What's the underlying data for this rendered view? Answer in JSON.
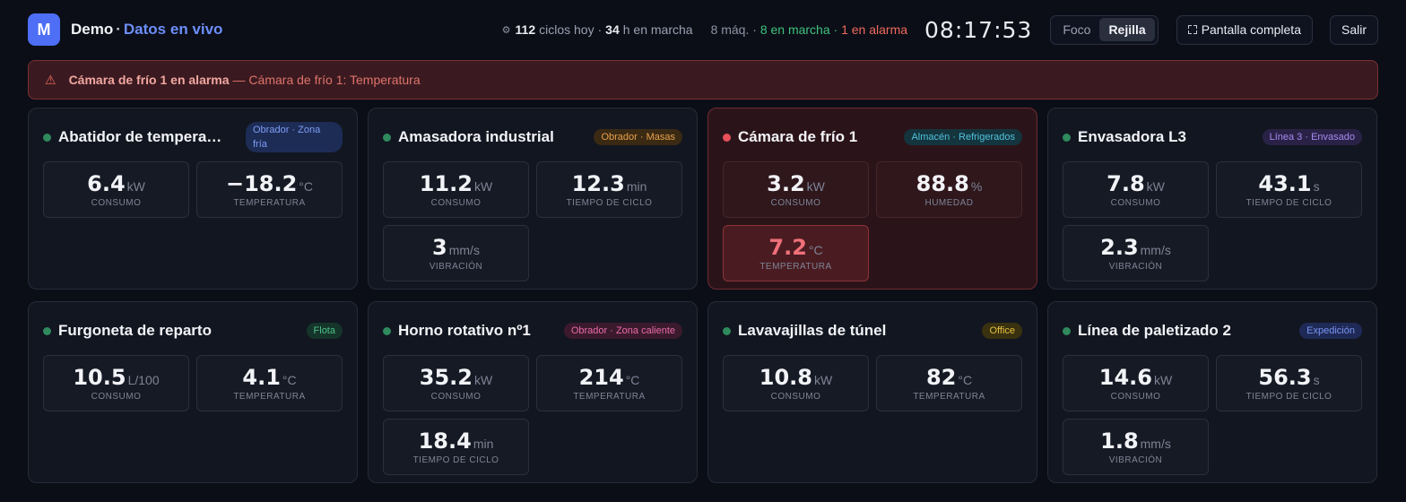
{
  "header": {
    "logo_letter": "M",
    "brand": "Demo",
    "brand_sep": "·",
    "live": "Datos en vivo",
    "cycles_count": "112",
    "cycles_text": "ciclos hoy ·",
    "hours_count": "34",
    "hours_text": "h en marcha",
    "machines_total": "8 máq. ·",
    "machines_running": "8 en marcha",
    "machines_sep": "·",
    "machines_alarm": "1 en alarma",
    "clock": "08:17:53",
    "view_focus": "Foco",
    "view_grid": "Rejilla",
    "fullscreen": "Pantalla completa",
    "exit": "Salir"
  },
  "alert": {
    "icon": "warning-triangle-icon",
    "title": "Cámara de frío 1 en alarma",
    "detail": "— Cámara de frío 1: Temperatura"
  },
  "cards": [
    {
      "title": "Abatidor de tempera…",
      "tag": "Obrador · Zona fría",
      "metrics": [
        {
          "value": "6.4",
          "unit": "kW",
          "label": "CONSUMO"
        },
        {
          "value": "−18.2",
          "unit": "°C",
          "label": "TEMPERATURA"
        }
      ]
    },
    {
      "title": "Amasadora industrial",
      "tag": "Obrador · Masas",
      "metrics": [
        {
          "value": "11.2",
          "unit": "kW",
          "label": "CONSUMO"
        },
        {
          "value": "12.3",
          "unit": "min",
          "label": "TIEMPO DE CICLO"
        },
        {
          "value": "3",
          "unit": "mm/s",
          "label": "VIBRACIÓN"
        }
      ]
    },
    {
      "title": "Cámara de frío 1",
      "tag": "Almacén · Refrigerados",
      "status": "alarm",
      "metrics": [
        {
          "value": "3.2",
          "unit": "kW",
          "label": "CONSUMO"
        },
        {
          "value": "88.8",
          "unit": "%",
          "label": "HUMEDAD"
        },
        {
          "value": "7.2",
          "unit": "°C",
          "label": "TEMPERATURA"
        }
      ]
    },
    {
      "title": "Envasadora L3",
      "tag": "Línea 3 · Envasado",
      "metrics": [
        {
          "value": "7.8",
          "unit": "kW",
          "label": "CONSUMO"
        },
        {
          "value": "43.1",
          "unit": "s",
          "label": "TIEMPO DE CICLO"
        },
        {
          "value": "2.3",
          "unit": "mm/s",
          "label": "VIBRACIÓN"
        }
      ]
    },
    {
      "title": "Furgoneta de reparto",
      "tag": "Flota",
      "metrics": [
        {
          "value": "10.5",
          "unit": "L/100",
          "label": "CONSUMO"
        },
        {
          "value": "4.1",
          "unit": "°C",
          "label": "TEMPERATURA"
        }
      ]
    },
    {
      "title": "Horno rotativo nº1",
      "tag": "Obrador · Zona caliente",
      "metrics": [
        {
          "value": "35.2",
          "unit": "kW",
          "label": "CONSUMO"
        },
        {
          "value": "214",
          "unit": "°C",
          "label": "TEMPERATURA"
        },
        {
          "value": "18.4",
          "unit": "min",
          "label": "TIEMPO DE CICLO"
        }
      ]
    },
    {
      "title": "Lavavajillas de túnel",
      "tag": "Office",
      "metrics": [
        {
          "value": "10.8",
          "unit": "kW",
          "label": "CONSUMO"
        },
        {
          "value": "82",
          "unit": "°C",
          "label": "TEMPERATURA"
        }
      ]
    },
    {
      "title": "Línea de paletizado 2",
      "tag": "Expedición",
      "metrics": [
        {
          "value": "14.6",
          "unit": "kW",
          "label": "CONSUMO"
        },
        {
          "value": "56.3",
          "unit": "s",
          "label": "TIEMPO DE CICLO"
        },
        {
          "value": "1.8",
          "unit": "mm/s",
          "label": "VIBRACIÓN"
        }
      ]
    }
  ]
}
